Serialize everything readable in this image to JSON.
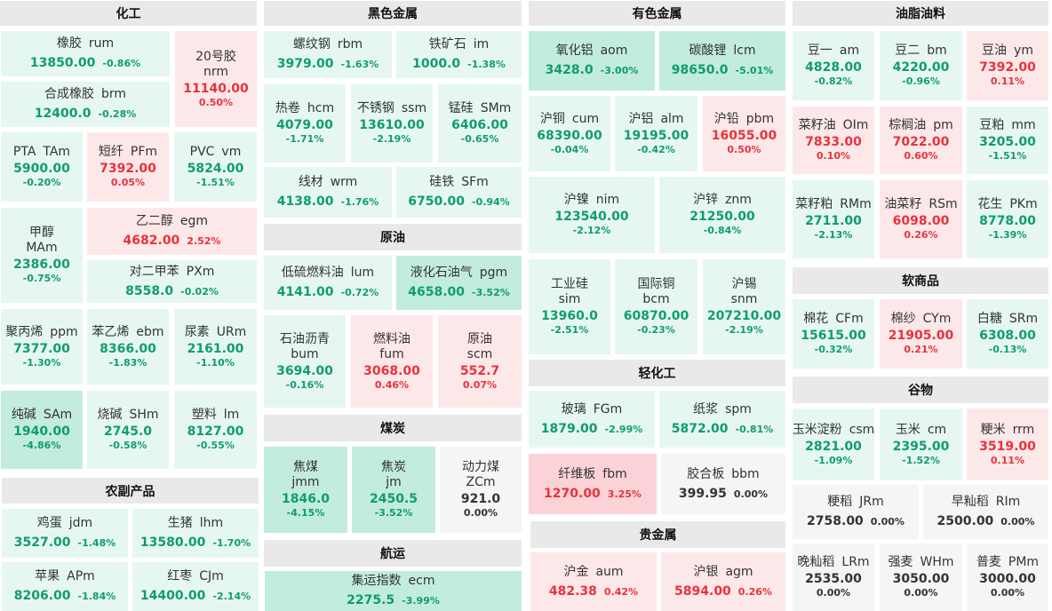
{
  "sections": {
    "huagong": "化工",
    "heise": "黑色金属",
    "youse": "有色金属",
    "youzhi": "油脂油料",
    "yuanyou": "原油",
    "meitan": "煤炭",
    "nongfu": "农副产品",
    "hangyun": "航运",
    "qinghua": "轻化工",
    "guijinshu": "贵金属",
    "ruanshang": "软商品",
    "guwu": "谷物"
  },
  "colors": {
    "up_text": "#e8323c",
    "down_text": "#0f9d6d",
    "up_light": "#fde8e9",
    "up_strong": "#fbd3d6",
    "down_light": "#e6f7f1",
    "down_strong": "#c2ecdd",
    "flat": "#f5f5f5",
    "header_bg": "#e9e9e9"
  },
  "cells": {
    "rum": {
      "name": "橡胶",
      "code": "rum",
      "price": "13850.00",
      "change": "-0.86%"
    },
    "nrm": {
      "name": "20号胶",
      "code": "nrm",
      "price": "11140.00",
      "change": "0.50%"
    },
    "brm": {
      "name": "合成橡胶",
      "code": "brm",
      "price": "12400.0",
      "change": "-0.28%"
    },
    "TAm": {
      "name": "PTA",
      "code": "TAm",
      "price": "5900.00",
      "change": "-0.20%"
    },
    "PFm": {
      "name": "短纤",
      "code": "PFm",
      "price": "7392.00",
      "change": "0.05%"
    },
    "vm": {
      "name": "PVC",
      "code": "vm",
      "price": "5824.00",
      "change": "-1.51%"
    },
    "MAm": {
      "name": "甲醇",
      "code": "MAm",
      "price": "2386.00",
      "change": "-0.75%"
    },
    "egm": {
      "name": "乙二醇",
      "code": "egm",
      "price": "4682.00",
      "change": "2.52%"
    },
    "PXm": {
      "name": "对二甲苯",
      "code": "PXm",
      "price": "8558.0",
      "change": "-0.02%"
    },
    "ppm": {
      "name": "聚丙烯",
      "code": "ppm",
      "price": "7377.00",
      "change": "-1.30%"
    },
    "ebm": {
      "name": "苯乙烯",
      "code": "ebm",
      "price": "8366.00",
      "change": "-1.83%"
    },
    "URm": {
      "name": "尿素",
      "code": "URm",
      "price": "2161.00",
      "change": "-1.10%"
    },
    "SAm": {
      "name": "纯碱",
      "code": "SAm",
      "price": "1940.00",
      "change": "-4.86%"
    },
    "SHm": {
      "name": "烧碱",
      "code": "SHm",
      "price": "2745.0",
      "change": "-0.58%"
    },
    "lm": {
      "name": "塑料",
      "code": "lm",
      "price": "8127.00",
      "change": "-0.55%"
    },
    "jdm": {
      "name": "鸡蛋",
      "code": "jdm",
      "price": "3527.00",
      "change": "-1.48%"
    },
    "lhm": {
      "name": "生猪",
      "code": "lhm",
      "price": "13580.00",
      "change": "-1.70%"
    },
    "APm": {
      "name": "苹果",
      "code": "APm",
      "price": "8206.00",
      "change": "-1.84%"
    },
    "CJm": {
      "name": "红枣",
      "code": "CJm",
      "price": "14400.00",
      "change": "-2.14%"
    },
    "rbm": {
      "name": "螺纹钢",
      "code": "rbm",
      "price": "3979.00",
      "change": "-1.63%"
    },
    "im": {
      "name": "铁矿石",
      "code": "im",
      "price": "1000.0",
      "change": "-1.38%"
    },
    "hcm": {
      "name": "热卷",
      "code": "hcm",
      "price": "4079.00",
      "change": "-1.71%"
    },
    "ssm": {
      "name": "不锈钢",
      "code": "ssm",
      "price": "13610.00",
      "change": "-2.19%"
    },
    "SMm": {
      "name": "锰硅",
      "code": "SMm",
      "price": "6406.00",
      "change": "-0.65%"
    },
    "wrm": {
      "name": "线材",
      "code": "wrm",
      "price": "4138.00",
      "change": "-1.76%"
    },
    "SFm": {
      "name": "硅铁",
      "code": "SFm",
      "price": "6750.00",
      "change": "-0.94%"
    },
    "lum": {
      "name": "低硫燃料油",
      "code": "lum",
      "price": "4141.00",
      "change": "-0.72%"
    },
    "pgm": {
      "name": "液化石油气",
      "code": "pgm",
      "price": "4658.00",
      "change": "-3.52%"
    },
    "bum": {
      "name": "石油沥青",
      "code": "bum",
      "price": "3694.00",
      "change": "-0.16%"
    },
    "fum": {
      "name": "燃料油",
      "code": "fum",
      "price": "3068.00",
      "change": "0.46%"
    },
    "scm": {
      "name": "原油",
      "code": "scm",
      "price": "552.7",
      "change": "0.07%"
    },
    "jmm": {
      "name": "焦煤",
      "code": "jmm",
      "price": "1846.0",
      "change": "-4.15%"
    },
    "jm": {
      "name": "焦炭",
      "code": "jm",
      "price": "2450.5",
      "change": "-3.52%"
    },
    "ZCm": {
      "name": "动力煤",
      "code": "ZCm",
      "price": "921.0",
      "change": "0.00%"
    },
    "ecm": {
      "name": "集运指数",
      "code": "ecm",
      "price": "2275.5",
      "change": "-3.99%"
    },
    "aom": {
      "name": "氧化铝",
      "code": "aom",
      "price": "3428.0",
      "change": "-3.00%"
    },
    "lcm": {
      "name": "碳酸锂",
      "code": "lcm",
      "price": "98650.0",
      "change": "-5.01%"
    },
    "cum": {
      "name": "沪铜",
      "code": "cum",
      "price": "68390.00",
      "change": "-0.04%"
    },
    "alm": {
      "name": "沪铝",
      "code": "alm",
      "price": "19195.00",
      "change": "-0.42%"
    },
    "pbm": {
      "name": "沪铅",
      "code": "pbm",
      "price": "16055.00",
      "change": "0.50%"
    },
    "nim": {
      "name": "沪镍",
      "code": "nim",
      "price": "123540.00",
      "change": "-2.12%"
    },
    "znm": {
      "name": "沪锌",
      "code": "znm",
      "price": "21250.00",
      "change": "-0.84%"
    },
    "sim": {
      "name": "工业硅",
      "code": "sim",
      "price": "13960.0",
      "change": "-2.51%"
    },
    "bcm": {
      "name": "国际铜",
      "code": "bcm",
      "price": "60870.00",
      "change": "-0.23%"
    },
    "snm": {
      "name": "沪锡",
      "code": "snm",
      "price": "207210.00",
      "change": "-2.19%"
    },
    "FGm": {
      "name": "玻璃",
      "code": "FGm",
      "price": "1879.00",
      "change": "-2.99%"
    },
    "spm": {
      "name": "纸浆",
      "code": "spm",
      "price": "5872.00",
      "change": "-0.81%"
    },
    "fbm": {
      "name": "纤维板",
      "code": "fbm",
      "price": "1270.00",
      "change": "3.25%"
    },
    "bbm": {
      "name": "胶合板",
      "code": "bbm",
      "price": "399.95",
      "change": "0.00%"
    },
    "aum": {
      "name": "沪金",
      "code": "aum",
      "price": "482.38",
      "change": "0.42%"
    },
    "agm": {
      "name": "沪银",
      "code": "agm",
      "price": "5894.00",
      "change": "0.26%"
    },
    "am": {
      "name": "豆一",
      "code": "am",
      "price": "4828.00",
      "change": "-0.82%"
    },
    "bm": {
      "name": "豆二",
      "code": "bm",
      "price": "4220.00",
      "change": "-0.96%"
    },
    "ym": {
      "name": "豆油",
      "code": "ym",
      "price": "7392.00",
      "change": "0.11%"
    },
    "OIm": {
      "name": "菜籽油",
      "code": "OIm",
      "price": "7833.00",
      "change": "0.10%"
    },
    "pm": {
      "name": "棕榈油",
      "code": "pm",
      "price": "7022.00",
      "change": "0.60%"
    },
    "mm": {
      "name": "豆粕",
      "code": "mm",
      "price": "3205.00",
      "change": "-1.51%"
    },
    "RMm": {
      "name": "菜籽粕",
      "code": "RMm",
      "price": "2711.00",
      "change": "-2.13%"
    },
    "RSm": {
      "name": "油菜籽",
      "code": "RSm",
      "price": "6098.00",
      "change": "0.26%"
    },
    "PKm": {
      "name": "花生",
      "code": "PKm",
      "price": "8778.00",
      "change": "-1.39%"
    },
    "CFm": {
      "name": "棉花",
      "code": "CFm",
      "price": "15615.00",
      "change": "-0.32%"
    },
    "CYm": {
      "name": "棉纱",
      "code": "CYm",
      "price": "21905.00",
      "change": "0.21%"
    },
    "SRm": {
      "name": "白糖",
      "code": "SRm",
      "price": "6308.00",
      "change": "-0.13%"
    },
    "csm": {
      "name": "玉米淀粉",
      "code": "csm",
      "price": "2821.00",
      "change": "-1.09%"
    },
    "cm": {
      "name": "玉米",
      "code": "cm",
      "price": "2395.00",
      "change": "-1.52%"
    },
    "rrm": {
      "name": "粳米",
      "code": "rrm",
      "price": "3519.00",
      "change": "0.11%"
    },
    "JRm": {
      "name": "粳稻",
      "code": "JRm",
      "price": "2758.00",
      "change": "0.00%"
    },
    "RIm": {
      "name": "早籼稻",
      "code": "RIm",
      "price": "2500.00",
      "change": "0.00%"
    },
    "LRm": {
      "name": "晚籼稻",
      "code": "LRm",
      "price": "2535.00",
      "change": "0.00%"
    },
    "WHm": {
      "name": "强麦",
      "code": "WHm",
      "price": "3050.00",
      "change": "0.00%"
    },
    "PMm": {
      "name": "普麦",
      "code": "PMm",
      "price": "3000.00",
      "change": "0.00%"
    }
  }
}
